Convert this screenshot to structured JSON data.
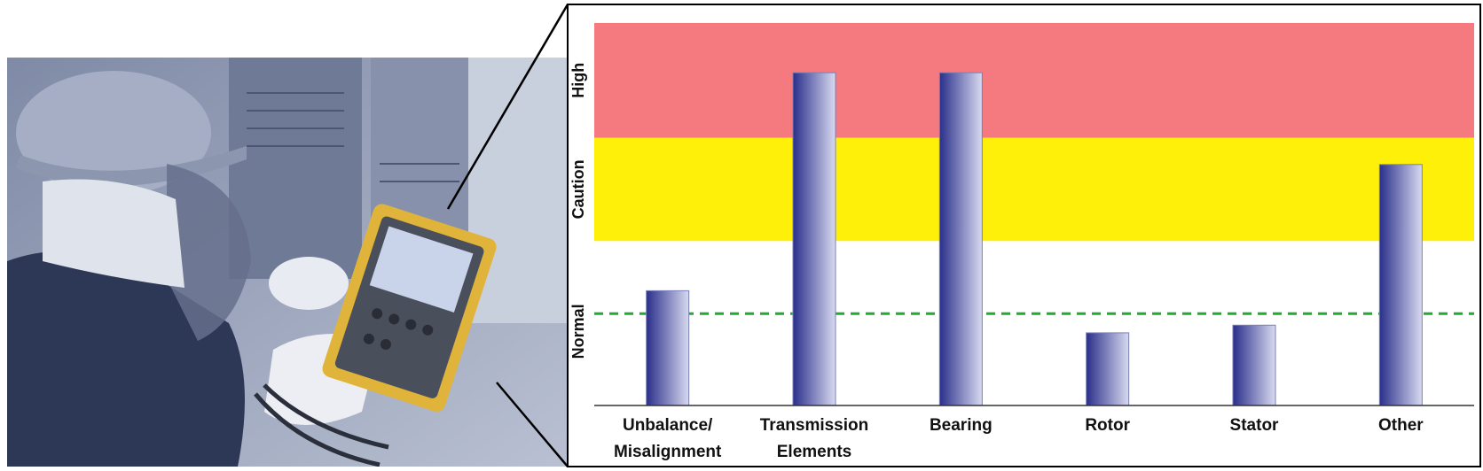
{
  "chart_data": {
    "type": "bar",
    "categories": [
      "Unbalance/ Misalignment",
      "Transmission Elements",
      "Bearing",
      "Rotor",
      "Stator",
      "Other"
    ],
    "category_lines": [
      [
        "Unbalance/",
        "Misalignment"
      ],
      [
        "Transmission",
        "Elements"
      ],
      [
        "Bearing"
      ],
      [
        "Rotor"
      ],
      [
        "Stator"
      ],
      [
        "Other"
      ]
    ],
    "values": [
      30,
      87,
      87,
      19,
      21,
      63
    ],
    "ylim": [
      0,
      103
    ],
    "zones": [
      {
        "label": "Normal",
        "from": 0,
        "to": 43,
        "color": "#ffffff"
      },
      {
        "label": "Caution",
        "from": 43,
        "to": 70,
        "color": "#fff00a"
      },
      {
        "label": "High",
        "from": 70,
        "to": 100,
        "color": "#f47a80"
      }
    ],
    "threshold": {
      "value": 24,
      "color": "#22aa33",
      "style": "dashed"
    },
    "bar_colors": [
      "#2a2f8a",
      "#d8daf0"
    ],
    "grid": false,
    "legend": "none"
  },
  "photo": {
    "description_icon": "technician-with-power-analyzer-photo",
    "tint": "#8e9ab4"
  }
}
